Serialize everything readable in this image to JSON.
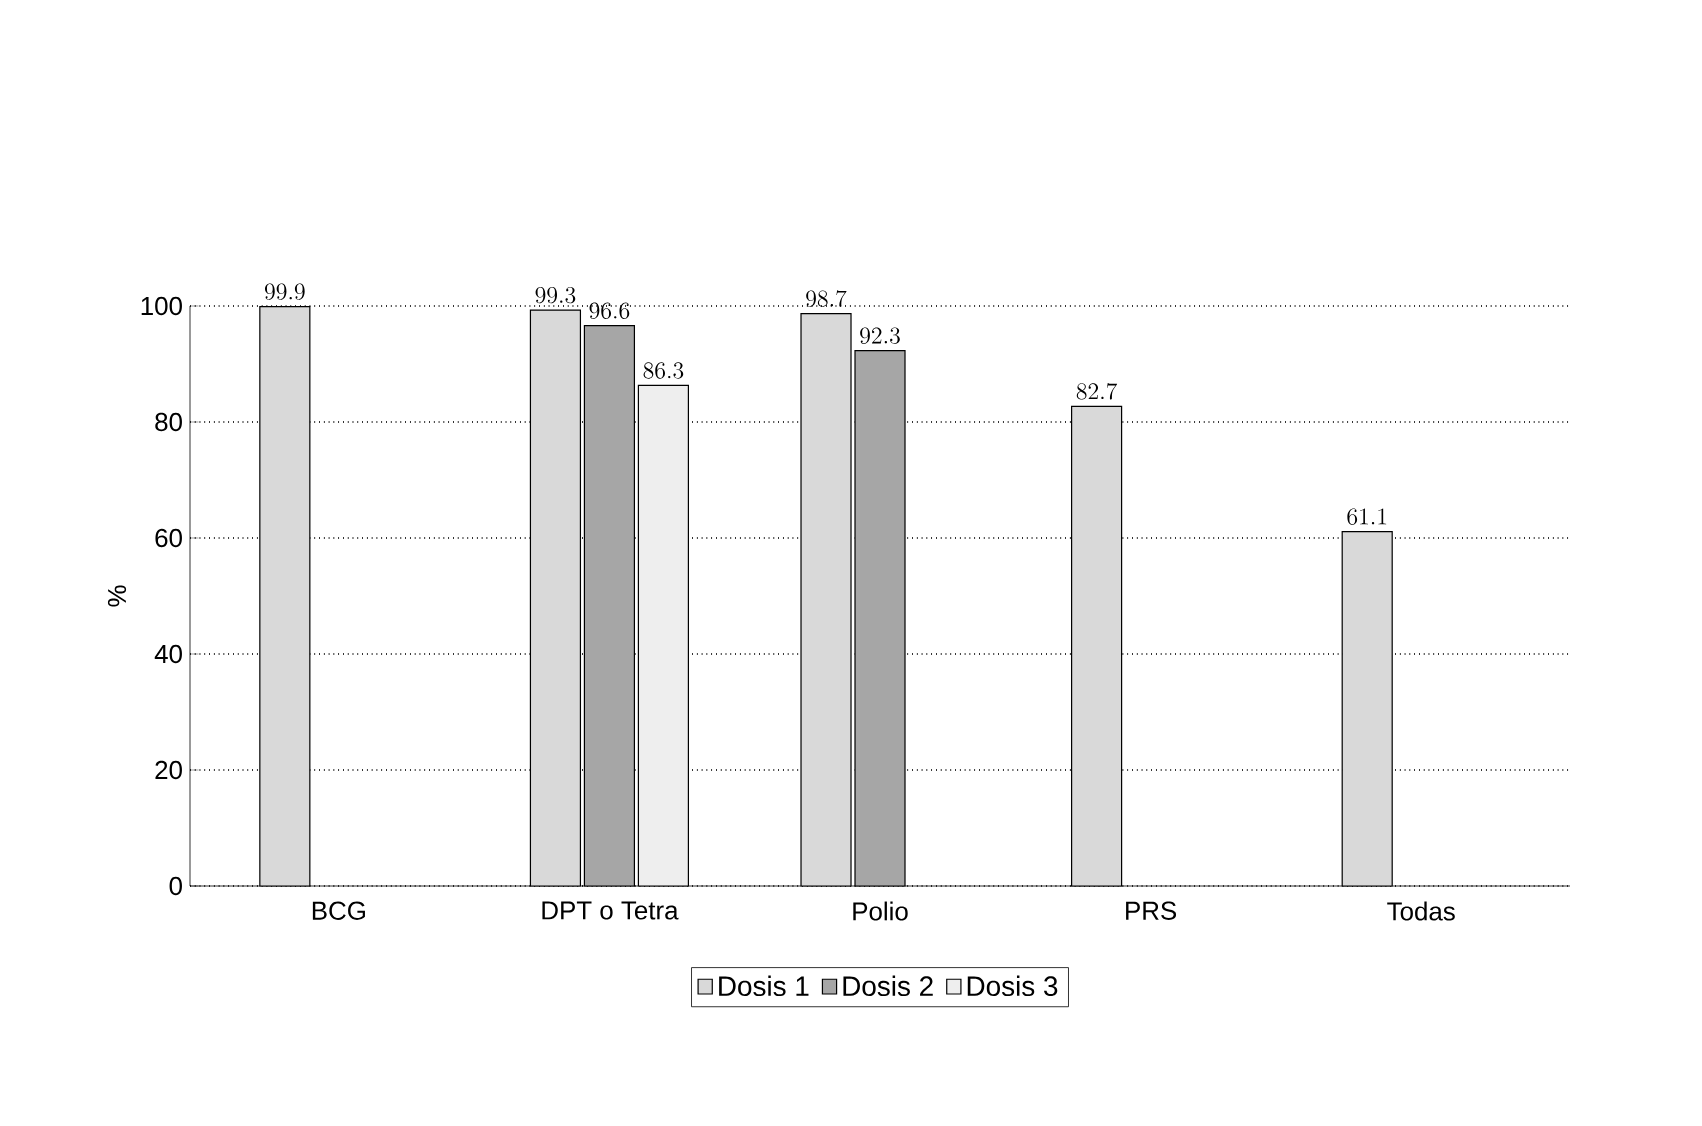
{
  "chart_data": {
    "type": "bar",
    "ylabel": "%",
    "categories": [
      "BCG",
      "DPT o Tetra",
      "Polio",
      "PRS",
      "Todas"
    ],
    "series": [
      {
        "name": "Dosis 1",
        "color": "#d9d9d9",
        "values": [
          99.9,
          99.3,
          98.7,
          82.7,
          61.1
        ]
      },
      {
        "name": "Dosis 2",
        "color": "#a6a6a6",
        "values": [
          null,
          96.6,
          92.3,
          null,
          null
        ]
      },
      {
        "name": "Dosis 3",
        "color": "#eeeeee",
        "values": [
          null,
          86.3,
          null,
          null,
          null
        ]
      }
    ],
    "ylim": [
      0,
      100
    ],
    "yticks": [
      0,
      20,
      40,
      60,
      80,
      100
    ],
    "grid": "y",
    "legend": "bottom",
    "data_labels": true
  }
}
